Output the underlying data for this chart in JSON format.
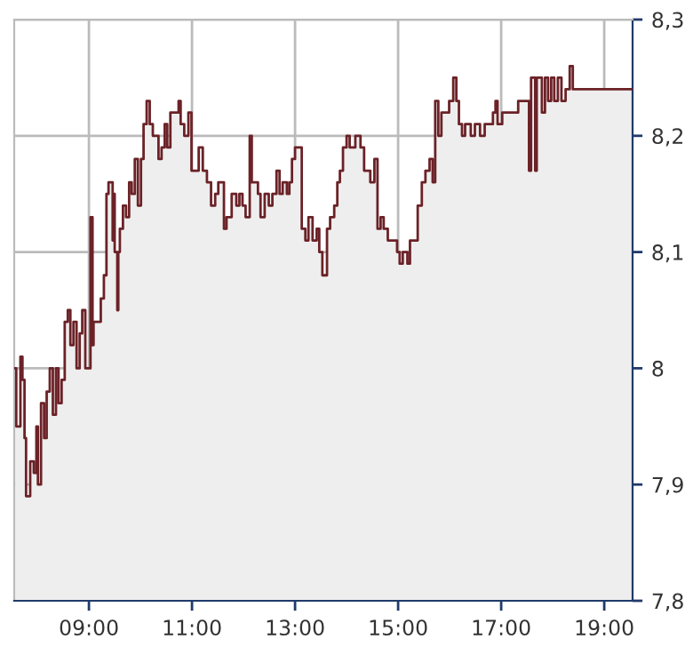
{
  "chart_data": {
    "type": "area",
    "grid": true,
    "line_style": "solid",
    "xlim": [
      7.55,
      19.55
    ],
    "ylim": [
      7.8,
      8.3
    ],
    "xticks": [
      {
        "value": 9,
        "label": "09:00"
      },
      {
        "value": 11,
        "label": "11:00"
      },
      {
        "value": 13,
        "label": "13:00"
      },
      {
        "value": 15,
        "label": "15:00"
      },
      {
        "value": 17,
        "label": "17:00"
      },
      {
        "value": 19,
        "label": "19:00"
      }
    ],
    "yticks": [
      {
        "value": 7.8,
        "label": "7,8"
      },
      {
        "value": 7.9,
        "label": "7,9"
      },
      {
        "value": 8.0,
        "label": "8"
      },
      {
        "value": 8.1,
        "label": "8,1"
      },
      {
        "value": 8.2,
        "label": "8,2"
      },
      {
        "value": 8.3,
        "label": "8,3"
      }
    ],
    "series": [
      {
        "color": "#6b2227",
        "x": [
          7.57,
          7.59,
          7.67,
          7.71,
          7.75,
          7.78,
          7.84,
          7.86,
          7.93,
          7.98,
          8.01,
          8.07,
          8.13,
          8.18,
          8.24,
          8.3,
          8.36,
          8.41,
          8.47,
          8.53,
          8.59,
          8.64,
          8.7,
          8.76,
          8.82,
          8.87,
          8.93,
          8.99,
          9.03,
          9.07,
          9.09,
          9.15,
          9.23,
          9.29,
          9.34,
          9.38,
          9.46,
          9.46,
          9.5,
          9.55,
          9.57,
          9.6,
          9.66,
          9.72,
          9.78,
          9.83,
          9.89,
          9.95,
          10.01,
          10.06,
          10.12,
          10.18,
          10.24,
          10.29,
          10.35,
          10.41,
          10.47,
          10.52,
          10.58,
          10.64,
          10.74,
          10.78,
          10.85,
          10.93,
          10.99,
          11.05,
          11.13,
          11.21,
          11.29,
          11.37,
          11.45,
          11.51,
          11.56,
          11.62,
          11.67,
          11.77,
          11.86,
          11.92,
          11.98,
          12.04,
          12.12,
          12.16,
          12.22,
          12.28,
          12.33,
          12.41,
          12.49,
          12.56,
          12.64,
          12.7,
          12.76,
          12.84,
          12.89,
          12.94,
          13.0,
          13.06,
          13.13,
          13.2,
          13.26,
          13.34,
          13.42,
          13.47,
          13.53,
          13.62,
          13.68,
          13.76,
          13.82,
          13.87,
          13.93,
          14.0,
          14.06,
          14.17,
          14.27,
          14.34,
          14.46,
          14.54,
          14.6,
          14.66,
          14.72,
          14.8,
          14.89,
          14.98,
          15.03,
          15.09,
          15.18,
          15.23,
          15.34,
          15.38,
          15.46,
          15.53,
          15.61,
          15.67,
          15.72,
          15.78,
          15.84,
          15.92,
          15.99,
          16.07,
          16.13,
          16.18,
          16.24,
          16.3,
          16.36,
          16.41,
          16.49,
          16.59,
          16.68,
          16.76,
          16.84,
          16.89,
          16.93,
          17.02,
          17.1,
          17.16,
          17.28,
          17.33,
          17.53,
          17.54,
          17.58,
          17.66,
          17.69,
          17.79,
          17.85,
          17.91,
          17.97,
          18.03,
          18.1,
          18.17,
          18.25,
          18.33,
          18.39,
          19.55
        ],
        "values": [
          8.0,
          7.95,
          8.01,
          7.99,
          7.94,
          7.89,
          7.89,
          7.92,
          7.91,
          7.95,
          7.9,
          7.97,
          7.94,
          7.98,
          8.0,
          7.96,
          8.0,
          7.97,
          7.99,
          8.04,
          8.05,
          8.02,
          8.04,
          8.0,
          8.03,
          8.05,
          8.0,
          8.0,
          8.13,
          8.02,
          8.04,
          8.04,
          8.06,
          8.08,
          8.15,
          8.16,
          8.11,
          8.15,
          8.1,
          8.05,
          8.1,
          8.12,
          8.14,
          8.13,
          8.16,
          8.15,
          8.18,
          8.14,
          8.18,
          8.21,
          8.23,
          8.21,
          8.2,
          8.2,
          8.18,
          8.19,
          8.21,
          8.19,
          8.22,
          8.22,
          8.23,
          8.21,
          8.2,
          8.22,
          8.17,
          8.17,
          8.19,
          8.17,
          8.16,
          8.14,
          8.15,
          8.16,
          8.16,
          8.12,
          8.13,
          8.15,
          8.14,
          8.15,
          8.14,
          8.13,
          8.2,
          8.16,
          8.16,
          8.15,
          8.13,
          8.15,
          8.14,
          8.15,
          8.17,
          8.15,
          8.16,
          8.15,
          8.16,
          8.18,
          8.19,
          8.19,
          8.12,
          8.11,
          8.13,
          8.11,
          8.12,
          8.1,
          8.08,
          8.12,
          8.13,
          8.14,
          8.16,
          8.17,
          8.19,
          8.2,
          8.19,
          8.2,
          8.19,
          8.17,
          8.16,
          8.18,
          8.12,
          8.13,
          8.12,
          8.11,
          8.11,
          8.1,
          8.09,
          8.1,
          8.09,
          8.11,
          8.11,
          8.14,
          8.16,
          8.17,
          8.18,
          8.16,
          8.23,
          8.2,
          8.22,
          8.22,
          8.23,
          8.25,
          8.23,
          8.21,
          8.2,
          8.21,
          8.21,
          8.2,
          8.21,
          8.2,
          8.21,
          8.21,
          8.22,
          8.23,
          8.21,
          8.22,
          8.22,
          8.22,
          8.22,
          8.23,
          8.23,
          8.17,
          8.25,
          8.17,
          8.25,
          8.22,
          8.25,
          8.23,
          8.25,
          8.23,
          8.25,
          8.23,
          8.24,
          8.26,
          8.24,
          8.24
        ]
      }
    ]
  }
}
